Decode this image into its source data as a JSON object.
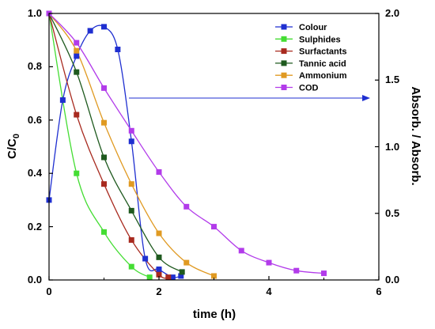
{
  "chart_data": {
    "type": "scatter",
    "xlabel": "time (h)",
    "ylabel_left": "C/C",
    "ylabel_left_sub": "0",
    "ylabel_right": "Absorb. / Absorb.",
    "xlim": [
      0,
      6
    ],
    "ylim_left": [
      0,
      1.0
    ],
    "ylim_right": [
      0,
      2.0
    ],
    "x_ticks": [
      "0",
      "2",
      "4",
      "6"
    ],
    "y_left_ticks": [
      "0.0",
      "0.2",
      "0.4",
      "0.6",
      "0.8",
      "1.0"
    ],
    "y_right_ticks": [
      "0.0",
      "0.5",
      "1.0",
      "1.5",
      "2.0"
    ],
    "grid": false,
    "legend_position": "top-right",
    "annotation": "arrow from Colour curve to right axis",
    "series": [
      {
        "name": "Colour",
        "color": "#1f2fd0",
        "axis": "left",
        "x": [
          0,
          0.25,
          0.5,
          0.75,
          1.0,
          1.25,
          1.5,
          1.75,
          2.0,
          2.25,
          2.4
        ],
        "y": [
          0.3,
          0.675,
          0.84,
          0.935,
          0.95,
          0.865,
          0.52,
          0.08,
          0.04,
          0.01,
          0.015
        ]
      },
      {
        "name": "Sulphides",
        "color": "#44dd33",
        "axis": "left",
        "x": [
          0,
          0.5,
          1.0,
          1.5,
          1.83
        ],
        "y": [
          1.0,
          0.4,
          0.18,
          0.05,
          0.01
        ]
      },
      {
        "name": "Surfactants",
        "color": "#a82a1f",
        "axis": "left",
        "x": [
          0,
          0.5,
          1.0,
          1.5,
          2.0,
          2.17
        ],
        "y": [
          1.0,
          0.62,
          0.36,
          0.15,
          0.02,
          0.01
        ]
      },
      {
        "name": "Tannic acid",
        "color": "#1f5a1f",
        "axis": "left",
        "x": [
          0,
          0.5,
          1.0,
          1.5,
          2.0,
          2.42
        ],
        "y": [
          1.0,
          0.78,
          0.46,
          0.26,
          0.085,
          0.03
        ]
      },
      {
        "name": "Ammonium",
        "color": "#e09a22",
        "axis": "left",
        "x": [
          0,
          0.5,
          1.0,
          1.5,
          2.0,
          2.5,
          3.0
        ],
        "y": [
          1.0,
          0.86,
          0.59,
          0.36,
          0.175,
          0.065,
          0.015
        ]
      },
      {
        "name": "COD",
        "color": "#b23bea",
        "axis": "left",
        "x": [
          0,
          0.5,
          1.0,
          1.5,
          2.0,
          2.5,
          3.0,
          3.5,
          4.0,
          4.5,
          5.0
        ],
        "y": [
          1.0,
          0.89,
          0.72,
          0.56,
          0.405,
          0.275,
          0.2,
          0.11,
          0.065,
          0.035,
          0.025
        ]
      }
    ]
  }
}
